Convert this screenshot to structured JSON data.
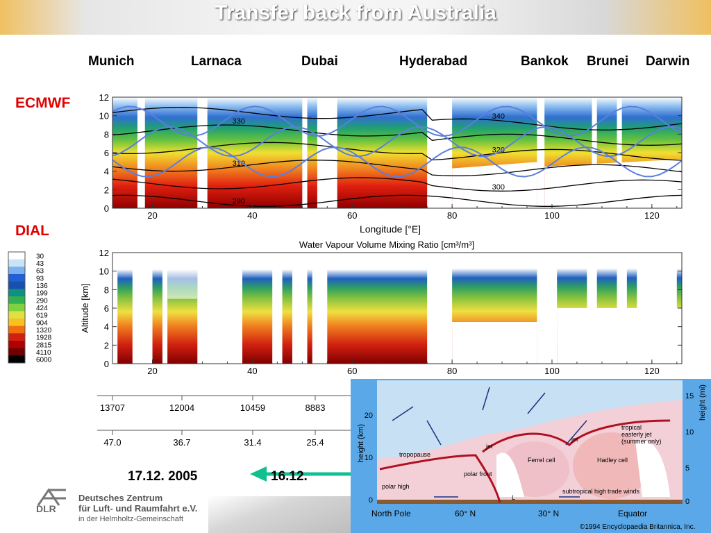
{
  "header": {
    "title": "Transfer back from Australia"
  },
  "cities": [
    "Munich",
    "Larnaca",
    "Dubai",
    "Hyderabad",
    "Bankok",
    "Brunei",
    "Darwin"
  ],
  "labels": {
    "ecmwf": "ECMWF",
    "dial": "DIAL"
  },
  "colorbar": {
    "ticks": [
      "30",
      "43",
      "63",
      "93",
      "136",
      "199",
      "290",
      "424",
      "619",
      "904",
      "1320",
      "1928",
      "2815",
      "4110",
      "6000"
    ],
    "colors": [
      "#ffffff",
      "#c8e4f8",
      "#78b0f0",
      "#2060d0",
      "#1850b0",
      "#109080",
      "#30b050",
      "#80d040",
      "#e0e040",
      "#f8c020",
      "#f07010",
      "#d02010",
      "#b00000",
      "#700000",
      "#000000"
    ]
  },
  "chart_data": [
    {
      "type": "heatmap",
      "panel": "ECMWF",
      "xlabel": "Longitude [°E]",
      "xlim": [
        12,
        126
      ],
      "x_ticks": [
        "20",
        "40",
        "60",
        "80",
        "100",
        "120"
      ],
      "y_ticks": [
        "0",
        "2",
        "4",
        "6",
        "8",
        "10",
        "12"
      ],
      "ylim": [
        0,
        12
      ],
      "isentropes": [
        "290",
        "300",
        "310",
        "320",
        "330",
        "340"
      ]
    },
    {
      "type": "heatmap",
      "panel": "DIAL",
      "title": "Water Vapour Volume Mixing Ratio [cm³/m³]",
      "ylabel": "Altitude [km]",
      "xlim": [
        12,
        126
      ],
      "x_ticks": [
        "20",
        "40",
        "60",
        "80",
        "100",
        "120"
      ],
      "y_ticks": [
        "0",
        "2",
        "4",
        "6",
        "8",
        "10",
        "12"
      ],
      "ylim": [
        0,
        12
      ]
    }
  ],
  "distance_ticks": [
    "13707",
    "12004",
    "10459",
    "8883"
  ],
  "time_ticks": [
    "47.0",
    "36.7",
    "31.4",
    "25.4"
  ],
  "dates": {
    "left": "17.12. 2005",
    "right": "16.12."
  },
  "org": {
    "line1": "Deutsches Zentrum",
    "line2": "für Luft- und Raumfahrt e.V.",
    "line3": "in der Helmholtz-Gemeinschaft",
    "short": "DLR"
  },
  "inset": {
    "left_axis": [
      "0",
      "10",
      "20"
    ],
    "left_label": "height (km)",
    "right_axis": [
      "0",
      "5",
      "10",
      "15"
    ],
    "right_label": "height (mi)",
    "bottom": [
      "North Pole",
      "60° N",
      "30° N",
      "Equator"
    ],
    "annotations": [
      "tropopause",
      "jet",
      "jet",
      "polar front",
      "polar high",
      "Ferrel cell",
      "Hadley cell",
      "subtropical high",
      "trade winds",
      "tropical easterly jet (summer only)",
      "L"
    ],
    "credit": "©1994 Encyclopaedia Britannica, Inc."
  }
}
